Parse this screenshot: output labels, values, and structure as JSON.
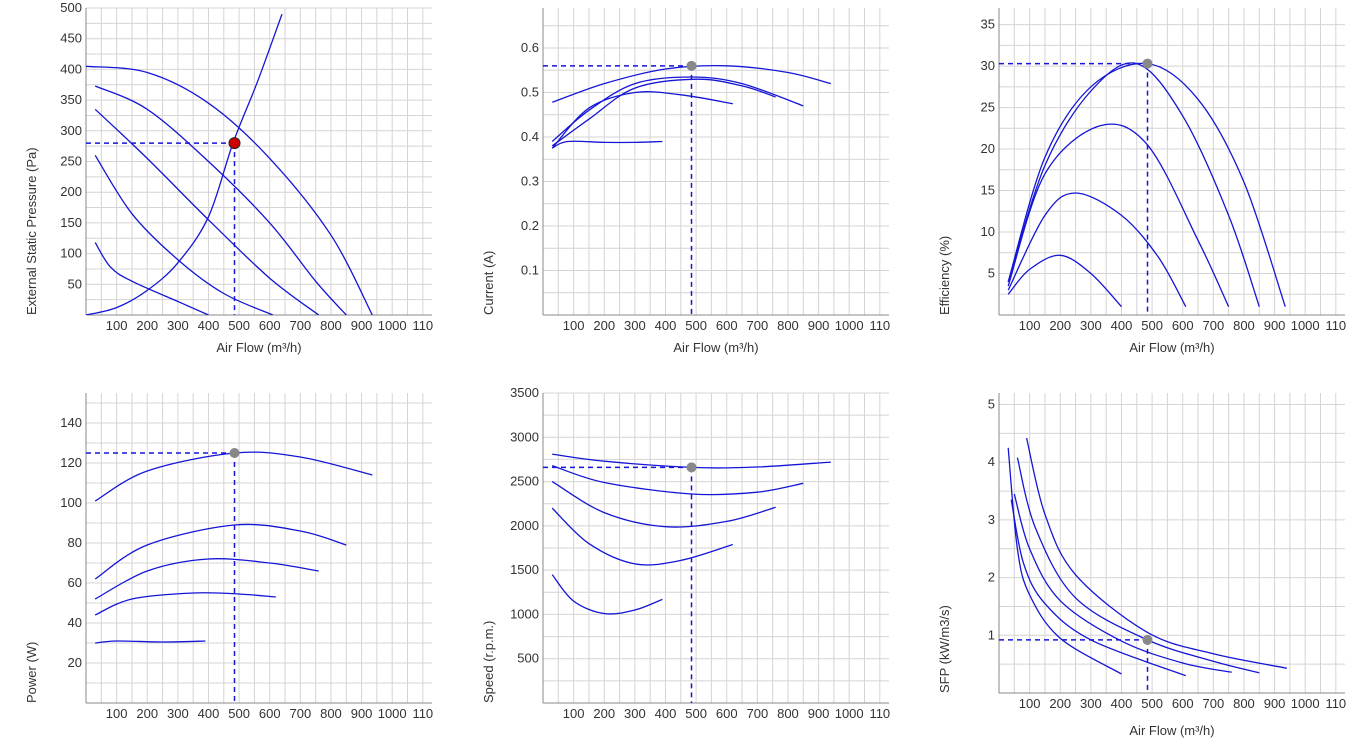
{
  "chart_data": [
    {
      "type": "line",
      "xlabel": "Air Flow (m³/h)",
      "ylabel": "External Static Pressure (Pa)",
      "x_ticks": [
        "100",
        "200",
        "300",
        "400",
        "500",
        "600",
        "700",
        "800",
        "900",
        "1000",
        "110"
      ],
      "y_ticks": [
        "50",
        "100",
        "150",
        "200",
        "250",
        "300",
        "350",
        "400",
        "450",
        "500"
      ],
      "xlim": [
        0,
        1130
      ],
      "ylim": [
        0,
        500
      ],
      "series": [
        {
          "values": [
            [
              0,
              405
            ],
            [
              200,
              395
            ],
            [
              400,
              345
            ],
            [
              600,
              255
            ],
            [
              800,
              130
            ],
            [
              935,
              0
            ]
          ]
        },
        {
          "values": [
            [
              30,
              373
            ],
            [
              200,
              335
            ],
            [
              400,
              250
            ],
            [
              600,
              150
            ],
            [
              750,
              55
            ],
            [
              850,
              0
            ]
          ]
        },
        {
          "values": [
            [
              30,
              335
            ],
            [
              200,
              255
            ],
            [
              400,
              155
            ],
            [
              600,
              60
            ],
            [
              760,
              0
            ]
          ]
        },
        {
          "values": [
            [
              30,
              260
            ],
            [
              150,
              165
            ],
            [
              300,
              90
            ],
            [
              450,
              35
            ],
            [
              610,
              0
            ]
          ]
        },
        {
          "values": [
            [
              30,
              118
            ],
            [
              80,
              78
            ],
            [
              150,
              55
            ],
            [
              300,
              22
            ],
            [
              400,
              0
            ]
          ]
        },
        {
          "values": [
            [
              0,
              0
            ],
            [
              100,
              12
            ],
            [
              200,
              40
            ],
            [
              300,
              85
            ],
            [
              400,
              160
            ],
            [
              480,
              280
            ],
            [
              560,
              380
            ],
            [
              640,
              490
            ]
          ]
        }
      ],
      "marker": {
        "x": 485,
        "y": 280,
        "color": "#cc0000"
      },
      "guide": {
        "x": 485,
        "y": 280
      }
    },
    {
      "type": "line",
      "xlabel": "Air Flow (m³/h)",
      "ylabel": "Current (A)",
      "x_ticks": [
        "100",
        "200",
        "300",
        "400",
        "500",
        "600",
        "700",
        "800",
        "900",
        "1000",
        "110"
      ],
      "y_ticks": [
        "0.1",
        "0.2",
        "0.3",
        "0.4",
        "0.5",
        "0.6"
      ],
      "xlim": [
        0,
        1130
      ],
      "ylim": [
        0,
        0.69
      ],
      "series": [
        {
          "values": [
            [
              30,
              0.478
            ],
            [
              200,
              0.52
            ],
            [
              400,
              0.553
            ],
            [
              600,
              0.56
            ],
            [
              800,
              0.545
            ],
            [
              940,
              0.52
            ]
          ]
        },
        {
          "values": [
            [
              30,
              0.39
            ],
            [
              150,
              0.46
            ],
            [
              300,
              0.52
            ],
            [
              485,
              0.535
            ],
            [
              650,
              0.52
            ],
            [
              850,
              0.47
            ]
          ]
        },
        {
          "values": [
            [
              30,
              0.38
            ],
            [
              150,
              0.44
            ],
            [
              300,
              0.51
            ],
            [
              500,
              0.53
            ],
            [
              650,
              0.515
            ],
            [
              760,
              0.49
            ]
          ]
        },
        {
          "values": [
            [
              30,
              0.375
            ],
            [
              150,
              0.465
            ],
            [
              300,
              0.5
            ],
            [
              450,
              0.495
            ],
            [
              620,
              0.475
            ]
          ]
        },
        {
          "values": [
            [
              30,
              0.375
            ],
            [
              80,
              0.39
            ],
            [
              200,
              0.388
            ],
            [
              300,
              0.388
            ],
            [
              390,
              0.39
            ]
          ]
        }
      ],
      "marker": {
        "x": 485,
        "y": 0.56,
        "color": "#888888"
      },
      "guide": {
        "x": 485,
        "y": 0.56
      }
    },
    {
      "type": "line",
      "xlabel": "Air Flow (m³/h)",
      "ylabel": "Efficiency (%)",
      "x_ticks": [
        "100",
        "200",
        "300",
        "400",
        "500",
        "600",
        "700",
        "800",
        "900",
        "1000",
        "110"
      ],
      "y_ticks": [
        "5",
        "10",
        "15",
        "20",
        "25",
        "30",
        "35"
      ],
      "xlim": [
        0,
        1130
      ],
      "ylim": [
        0,
        37
      ],
      "series": [
        {
          "values": [
            [
              30,
              4
            ],
            [
              150,
              19
            ],
            [
              300,
              27.5
            ],
            [
              485,
              30.3
            ],
            [
              650,
              26
            ],
            [
              800,
              16
            ],
            [
              935,
              1
            ]
          ]
        },
        {
          "values": [
            [
              30,
              4
            ],
            [
              150,
              18
            ],
            [
              300,
              27
            ],
            [
              450,
              30.3
            ],
            [
              600,
              24
            ],
            [
              750,
              12
            ],
            [
              850,
              1
            ]
          ]
        },
        {
          "values": [
            [
              30,
              3.5
            ],
            [
              150,
              17
            ],
            [
              330,
              22.8
            ],
            [
              485,
              20.5
            ],
            [
              650,
              9
            ],
            [
              750,
              1
            ]
          ]
        },
        {
          "values": [
            [
              30,
              3
            ],
            [
              150,
              12
            ],
            [
              250,
              14.7
            ],
            [
              400,
              12
            ],
            [
              520,
              7
            ],
            [
              610,
              1
            ]
          ]
        },
        {
          "values": [
            [
              30,
              2.5
            ],
            [
              100,
              5.5
            ],
            [
              200,
              7.2
            ],
            [
              300,
              5
            ],
            [
              400,
              1
            ]
          ]
        }
      ],
      "marker": {
        "x": 485,
        "y": 30.3,
        "color": "#888888"
      },
      "guide": {
        "x": 485,
        "y": 30.3
      }
    },
    {
      "type": "line",
      "xlabel": "",
      "ylabel": "Power (W)",
      "x_ticks": [
        "100",
        "200",
        "300",
        "400",
        "500",
        "600",
        "700",
        "800",
        "900",
        "1000",
        "110"
      ],
      "y_ticks": [
        "20",
        "40",
        "60",
        "80",
        "100",
        "120",
        "140"
      ],
      "xlim": [
        0,
        1130
      ],
      "ylim": [
        0,
        155
      ],
      "series": [
        {
          "values": [
            [
              30,
              101
            ],
            [
              200,
              116
            ],
            [
              485,
              125
            ],
            [
              700,
              123
            ],
            [
              935,
              114
            ]
          ]
        },
        {
          "values": [
            [
              30,
              62
            ],
            [
              200,
              79
            ],
            [
              485,
              89
            ],
            [
              700,
              86
            ],
            [
              850,
              79
            ]
          ]
        },
        {
          "values": [
            [
              30,
              52
            ],
            [
              200,
              66
            ],
            [
              400,
              72
            ],
            [
              600,
              70
            ],
            [
              760,
              66
            ]
          ]
        },
        {
          "values": [
            [
              30,
              44
            ],
            [
              150,
              52
            ],
            [
              350,
              55
            ],
            [
              500,
              54.5
            ],
            [
              620,
              53
            ]
          ]
        },
        {
          "values": [
            [
              30,
              30
            ],
            [
              100,
              31
            ],
            [
              250,
              30.5
            ],
            [
              390,
              31
            ]
          ]
        }
      ],
      "marker": {
        "x": 485,
        "y": 125,
        "color": "#888888"
      },
      "guide": {
        "x": 485,
        "y": 125
      }
    },
    {
      "type": "line",
      "xlabel": "",
      "ylabel": "Speed (r.p.m.)",
      "x_ticks": [
        "100",
        "200",
        "300",
        "400",
        "500",
        "600",
        "700",
        "800",
        "900",
        "1000",
        "110"
      ],
      "y_ticks": [
        "500",
        "1000",
        "1500",
        "2000",
        "2500",
        "3000",
        "3500"
      ],
      "xlim": [
        0,
        1130
      ],
      "ylim": [
        0,
        3500
      ],
      "series": [
        {
          "values": [
            [
              30,
              2810
            ],
            [
              200,
              2730
            ],
            [
              485,
              2660
            ],
            [
              700,
              2665
            ],
            [
              940,
              2720
            ]
          ]
        },
        {
          "values": [
            [
              30,
              2680
            ],
            [
              200,
              2490
            ],
            [
              485,
              2360
            ],
            [
              700,
              2380
            ],
            [
              850,
              2480
            ]
          ]
        },
        {
          "values": [
            [
              30,
              2500
            ],
            [
              200,
              2150
            ],
            [
              400,
              1990
            ],
            [
              600,
              2050
            ],
            [
              760,
              2210
            ]
          ]
        },
        {
          "values": [
            [
              30,
              2200
            ],
            [
              150,
              1800
            ],
            [
              300,
              1570
            ],
            [
              450,
              1610
            ],
            [
              620,
              1790
            ]
          ]
        },
        {
          "values": [
            [
              30,
              1450
            ],
            [
              100,
              1150
            ],
            [
              200,
              1010
            ],
            [
              300,
              1050
            ],
            [
              390,
              1170
            ]
          ]
        }
      ],
      "marker": {
        "x": 485,
        "y": 2660,
        "color": "#888888"
      },
      "guide": {
        "x": 485,
        "y": 2660
      }
    },
    {
      "type": "line",
      "xlabel": "Air Flow (m³/h)",
      "ylabel": "SFP (kW/m3/s)",
      "x_ticks": [
        "100",
        "200",
        "300",
        "400",
        "500",
        "600",
        "700",
        "800",
        "900",
        "1000",
        "110"
      ],
      "y_ticks": [
        "1",
        "2",
        "3",
        "4",
        "5"
      ],
      "xlim": [
        0,
        1130
      ],
      "ylim": [
        0,
        5.2
      ],
      "series": [
        {
          "values": [
            [
              90,
              4.42
            ],
            [
              150,
              3.1
            ],
            [
              250,
              2.05
            ],
            [
              485,
              1.05
            ],
            [
              700,
              0.68
            ],
            [
              940,
              0.43
            ]
          ]
        },
        {
          "values": [
            [
              60,
              4.08
            ],
            [
              120,
              2.85
            ],
            [
              250,
              1.65
            ],
            [
              485,
              0.92
            ],
            [
              700,
              0.55
            ],
            [
              850,
              0.35
            ]
          ]
        },
        {
          "values": [
            [
              50,
              3.45
            ],
            [
              100,
              2.5
            ],
            [
              200,
              1.6
            ],
            [
              400,
              0.9
            ],
            [
              600,
              0.52
            ],
            [
              760,
              0.36
            ]
          ]
        },
        {
          "values": [
            [
              40,
              3.35
            ],
            [
              80,
              2.25
            ],
            [
              150,
              1.55
            ],
            [
              300,
              0.92
            ],
            [
              610,
              0.3
            ]
          ]
        },
        {
          "values": [
            [
              30,
              4.25
            ],
            [
              60,
              2.5
            ],
            [
              100,
              1.7
            ],
            [
              200,
              0.95
            ],
            [
              400,
              0.33
            ]
          ]
        }
      ],
      "marker": {
        "x": 485,
        "y": 0.92,
        "color": "#888888"
      },
      "guide": {
        "x": 485,
        "y": 0.92
      }
    }
  ],
  "colors": {
    "line": "#1515d6",
    "grid": "#d4d4d4",
    "axis": "#888888"
  }
}
